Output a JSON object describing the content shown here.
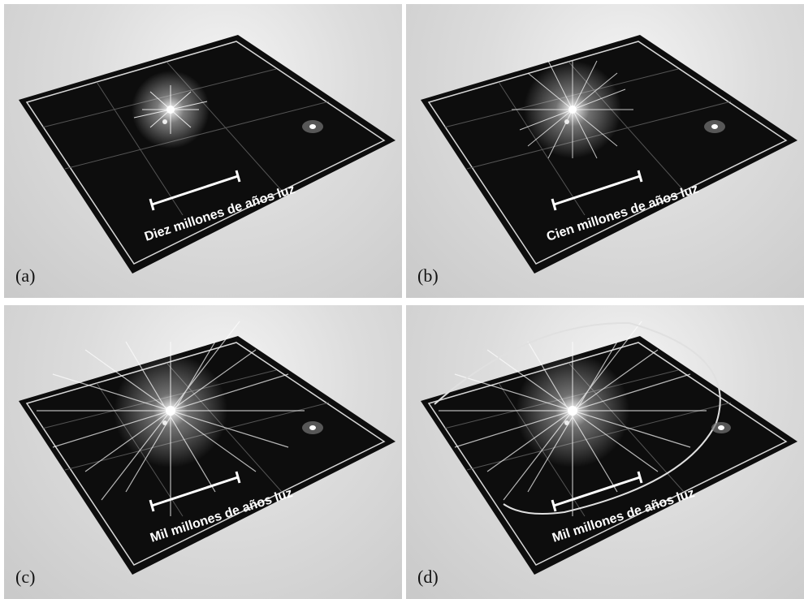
{
  "panels": [
    {
      "label": "(a)",
      "caption": "Diez millones de años luz"
    },
    {
      "label": "(b)",
      "caption": "Cien millones de años luz"
    },
    {
      "label": "(c)",
      "caption": "Mil millones de años luz"
    },
    {
      "label": "(d)",
      "caption": "Mil millones de años luz"
    }
  ]
}
